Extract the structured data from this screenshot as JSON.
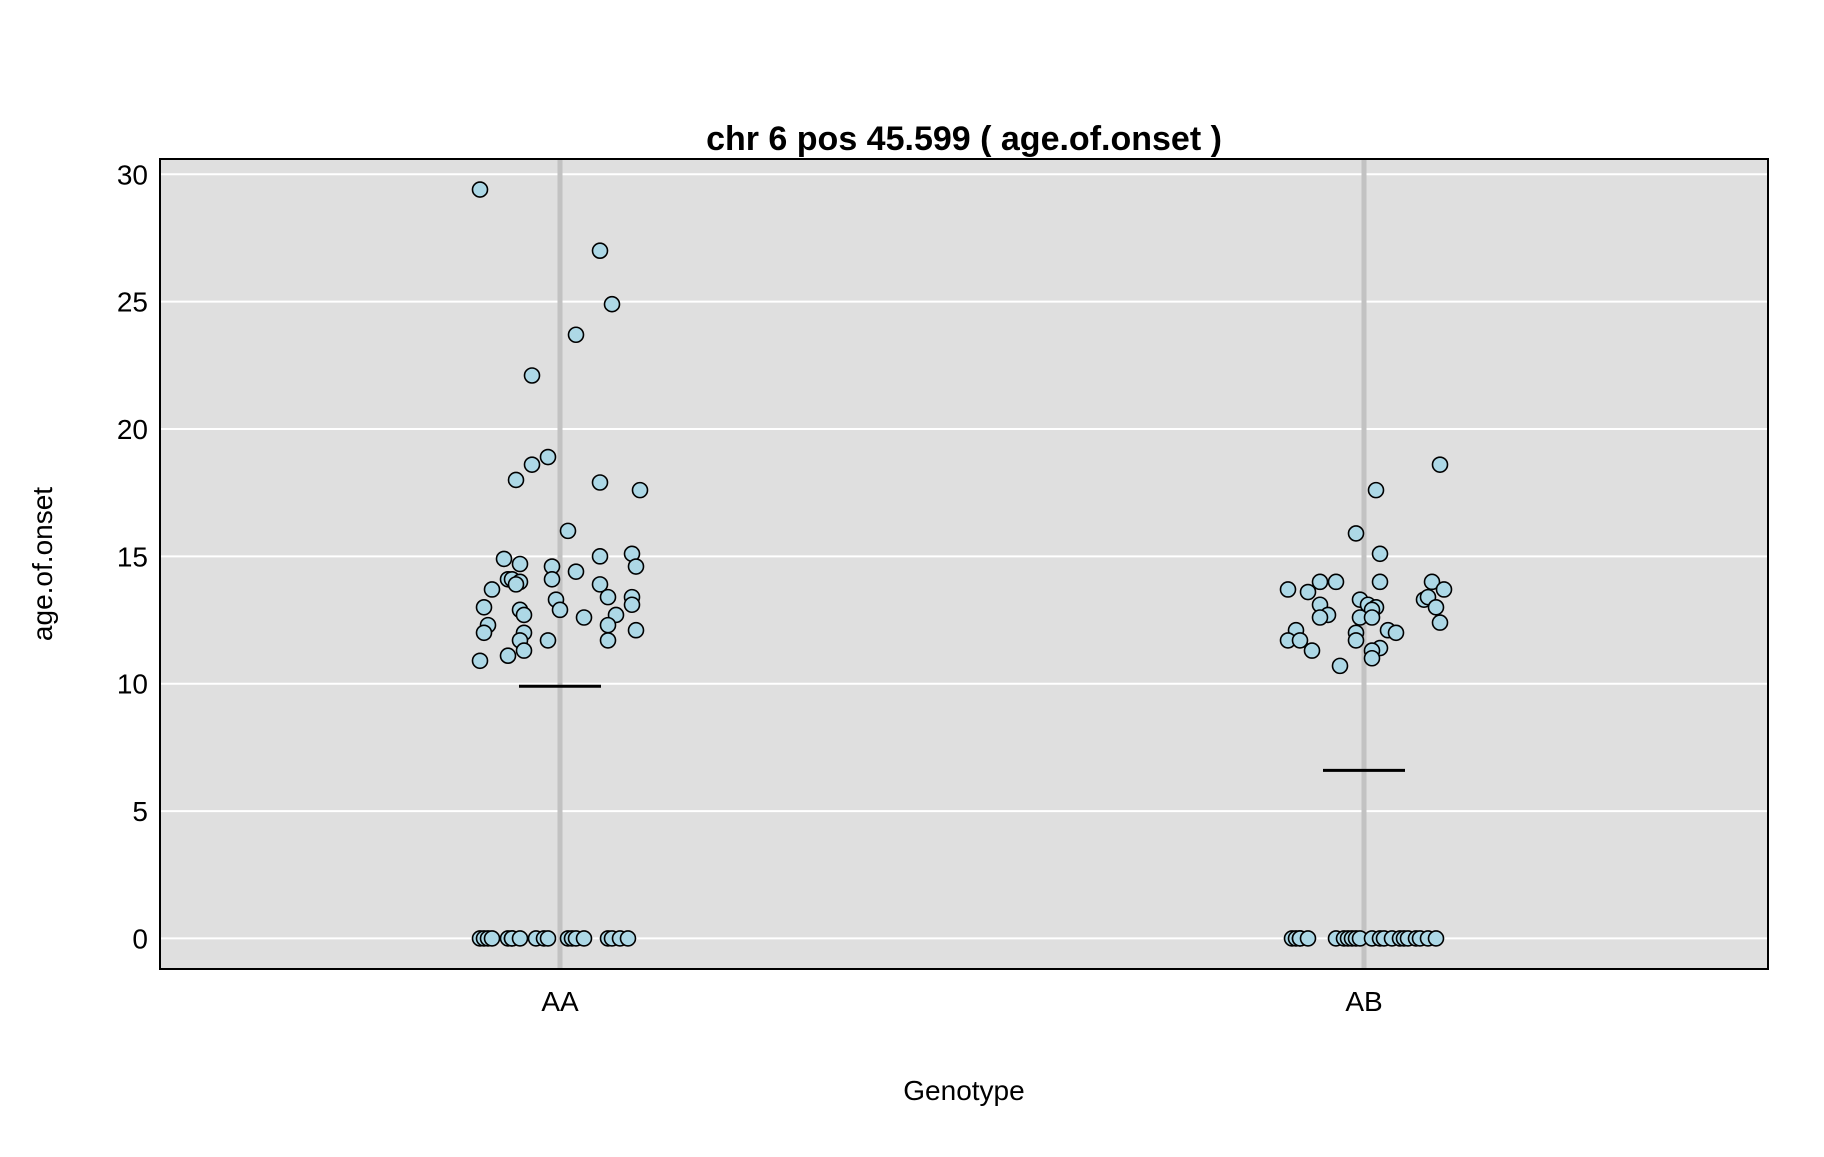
{
  "chart_data": {
    "type": "scatter",
    "title": "chr 6 pos 45.599 ( age.of.onset )",
    "xlabel": "Genotype",
    "ylabel": "age.of.onset",
    "categories": [
      "AA",
      "AB"
    ],
    "ylim": [
      -1.2,
      30.6
    ],
    "yticks": [
      0,
      5,
      10,
      15,
      20,
      25,
      30
    ],
    "grid": "horizontal",
    "colors": {
      "panel": "#dfdfdf",
      "grid": "#ffffff",
      "category_line": "#c2c2c2",
      "point_fill": "#add8e6",
      "point_stroke": "#000000",
      "mean_line": "#000000"
    },
    "means": [
      {
        "category": "AA",
        "value": 9.9
      },
      {
        "category": "AB",
        "value": 6.6
      }
    ],
    "series": [
      {
        "category": "AA",
        "points": [
          {
            "x": -0.2,
            "y": 29.4
          },
          {
            "x": 0.1,
            "y": 27.0
          },
          {
            "x": 0.13,
            "y": 24.9
          },
          {
            "x": 0.04,
            "y": 23.7
          },
          {
            "x": -0.07,
            "y": 22.1
          },
          {
            "x": -0.03,
            "y": 18.9
          },
          {
            "x": -0.07,
            "y": 18.6
          },
          {
            "x": -0.11,
            "y": 18.0
          },
          {
            "x": 0.1,
            "y": 17.9
          },
          {
            "x": 0.2,
            "y": 17.6
          },
          {
            "x": 0.02,
            "y": 16.0
          },
          {
            "x": 0.18,
            "y": 15.1
          },
          {
            "x": 0.1,
            "y": 15.0
          },
          {
            "x": -0.14,
            "y": 14.9
          },
          {
            "x": -0.1,
            "y": 14.7
          },
          {
            "x": 0.19,
            "y": 14.6
          },
          {
            "x": -0.02,
            "y": 14.6
          },
          {
            "x": 0.04,
            "y": 14.4
          },
          {
            "x": -0.13,
            "y": 14.1
          },
          {
            "x": -0.12,
            "y": 14.1
          },
          {
            "x": -0.02,
            "y": 14.1
          },
          {
            "x": -0.1,
            "y": 14.0
          },
          {
            "x": -0.11,
            "y": 13.9
          },
          {
            "x": 0.1,
            "y": 13.9
          },
          {
            "x": -0.17,
            "y": 13.7
          },
          {
            "x": 0.12,
            "y": 13.4
          },
          {
            "x": 0.18,
            "y": 13.4
          },
          {
            "x": -0.01,
            "y": 13.3
          },
          {
            "x": -0.19,
            "y": 13.0
          },
          {
            "x": 0.18,
            "y": 13.1
          },
          {
            "x": -0.1,
            "y": 12.9
          },
          {
            "x": 0.0,
            "y": 12.9
          },
          {
            "x": -0.09,
            "y": 12.7
          },
          {
            "x": 0.14,
            "y": 12.7
          },
          {
            "x": 0.06,
            "y": 12.6
          },
          {
            "x": -0.18,
            "y": 12.3
          },
          {
            "x": 0.12,
            "y": 12.3
          },
          {
            "x": -0.19,
            "y": 12.0
          },
          {
            "x": -0.09,
            "y": 12.0
          },
          {
            "x": 0.19,
            "y": 12.1
          },
          {
            "x": -0.1,
            "y": 11.7
          },
          {
            "x": -0.03,
            "y": 11.7
          },
          {
            "x": 0.12,
            "y": 11.7
          },
          {
            "x": -0.09,
            "y": 11.3
          },
          {
            "x": -0.13,
            "y": 11.1
          },
          {
            "x": -0.2,
            "y": 10.9
          },
          {
            "x": -0.2,
            "y": 0
          },
          {
            "x": -0.19,
            "y": 0
          },
          {
            "x": -0.18,
            "y": 0
          },
          {
            "x": -0.17,
            "y": 0
          },
          {
            "x": -0.13,
            "y": 0
          },
          {
            "x": -0.12,
            "y": 0
          },
          {
            "x": -0.12,
            "y": 0
          },
          {
            "x": -0.1,
            "y": 0
          },
          {
            "x": -0.06,
            "y": 0
          },
          {
            "x": -0.04,
            "y": 0
          },
          {
            "x": -0.03,
            "y": 0
          },
          {
            "x": 0.02,
            "y": 0
          },
          {
            "x": 0.03,
            "y": 0
          },
          {
            "x": 0.04,
            "y": 0
          },
          {
            "x": 0.06,
            "y": 0
          },
          {
            "x": 0.12,
            "y": 0
          },
          {
            "x": 0.13,
            "y": 0
          },
          {
            "x": 0.15,
            "y": 0
          },
          {
            "x": 0.17,
            "y": 0
          }
        ]
      },
      {
        "category": "AB",
        "points": [
          {
            "x": 0.19,
            "y": 18.6
          },
          {
            "x": 0.03,
            "y": 17.6
          },
          {
            "x": -0.02,
            "y": 15.9
          },
          {
            "x": 0.04,
            "y": 15.1
          },
          {
            "x": 0.04,
            "y": 14.0
          },
          {
            "x": -0.11,
            "y": 14.0
          },
          {
            "x": -0.07,
            "y": 14.0
          },
          {
            "x": 0.17,
            "y": 14.0
          },
          {
            "x": -0.19,
            "y": 13.7
          },
          {
            "x": 0.2,
            "y": 13.7
          },
          {
            "x": -0.14,
            "y": 13.6
          },
          {
            "x": -0.01,
            "y": 13.3
          },
          {
            "x": 0.15,
            "y": 13.3
          },
          {
            "x": 0.16,
            "y": 13.4
          },
          {
            "x": -0.11,
            "y": 13.1
          },
          {
            "x": 0.01,
            "y": 13.1
          },
          {
            "x": 0.03,
            "y": 13.0
          },
          {
            "x": 0.18,
            "y": 13.0
          },
          {
            "x": 0.02,
            "y": 12.9
          },
          {
            "x": -0.09,
            "y": 12.7
          },
          {
            "x": -0.11,
            "y": 12.6
          },
          {
            "x": -0.01,
            "y": 12.6
          },
          {
            "x": 0.02,
            "y": 12.6
          },
          {
            "x": 0.19,
            "y": 12.4
          },
          {
            "x": -0.17,
            "y": 12.1
          },
          {
            "x": -0.02,
            "y": 12.0
          },
          {
            "x": 0.06,
            "y": 12.1
          },
          {
            "x": 0.08,
            "y": 12.0
          },
          {
            "x": -0.19,
            "y": 11.7
          },
          {
            "x": -0.16,
            "y": 11.7
          },
          {
            "x": -0.02,
            "y": 11.7
          },
          {
            "x": 0.04,
            "y": 11.4
          },
          {
            "x": -0.13,
            "y": 11.3
          },
          {
            "x": 0.02,
            "y": 11.3
          },
          {
            "x": 0.02,
            "y": 11.0
          },
          {
            "x": -0.06,
            "y": 10.7
          },
          {
            "x": -0.18,
            "y": 0
          },
          {
            "x": -0.17,
            "y": 0
          },
          {
            "x": -0.16,
            "y": 0
          },
          {
            "x": -0.16,
            "y": 0
          },
          {
            "x": -0.14,
            "y": 0
          },
          {
            "x": -0.07,
            "y": 0
          },
          {
            "x": -0.05,
            "y": 0
          },
          {
            "x": -0.04,
            "y": 0
          },
          {
            "x": -0.03,
            "y": 0
          },
          {
            "x": -0.02,
            "y": 0
          },
          {
            "x": -0.01,
            "y": 0
          },
          {
            "x": 0.02,
            "y": 0
          },
          {
            "x": 0.04,
            "y": 0
          },
          {
            "x": 0.05,
            "y": 0
          },
          {
            "x": 0.07,
            "y": 0
          },
          {
            "x": 0.09,
            "y": 0
          },
          {
            "x": 0.1,
            "y": 0
          },
          {
            "x": 0.11,
            "y": 0
          },
          {
            "x": 0.13,
            "y": 0
          },
          {
            "x": 0.14,
            "y": 0
          },
          {
            "x": 0.16,
            "y": 0
          },
          {
            "x": 0.18,
            "y": 0
          }
        ]
      }
    ]
  }
}
